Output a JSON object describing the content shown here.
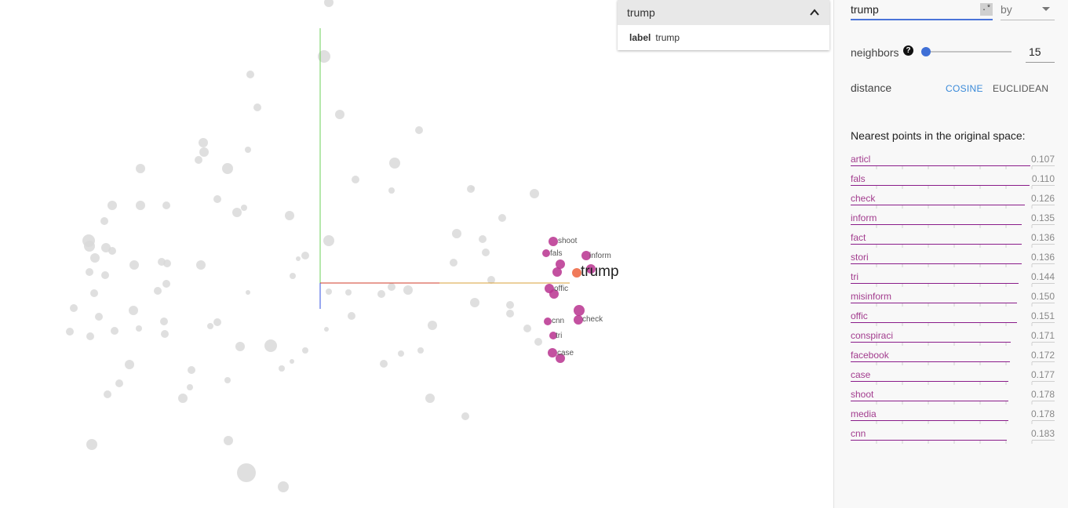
{
  "info_card": {
    "title": "trump",
    "field_key": "label",
    "field_value": "trump"
  },
  "search": {
    "value": "trump",
    "regex_toggle": ".*",
    "by_label": "by"
  },
  "neighbors": {
    "label": "neighbors",
    "value": "15",
    "fraction": 0.0
  },
  "distance": {
    "label": "distance",
    "options": [
      "COSINE",
      "EUCLIDEAN"
    ],
    "selected": "COSINE"
  },
  "nearest": {
    "title": "Nearest points in the original space:",
    "items": [
      {
        "word": "articl",
        "value": "0.107"
      },
      {
        "word": "fals",
        "value": "0.110"
      },
      {
        "word": "check",
        "value": "0.126"
      },
      {
        "word": "inform",
        "value": "0.135"
      },
      {
        "word": "fact",
        "value": "0.136"
      },
      {
        "word": "stori",
        "value": "0.136"
      },
      {
        "word": "tri",
        "value": "0.144"
      },
      {
        "word": "misinform",
        "value": "0.150"
      },
      {
        "word": "offic",
        "value": "0.151"
      },
      {
        "word": "conspiraci",
        "value": "0.171"
      },
      {
        "word": "facebook",
        "value": "0.172"
      },
      {
        "word": "case",
        "value": "0.177"
      },
      {
        "word": "shoot",
        "value": "0.178"
      },
      {
        "word": "media",
        "value": "0.178"
      },
      {
        "word": "cnn",
        "value": "0.183"
      }
    ]
  },
  "projection": {
    "selected_label": "trump",
    "neighbor_labels": [
      "shoot",
      "fals",
      "inform",
      "offic",
      "cnn",
      "check",
      "tri",
      "case"
    ],
    "colors": {
      "background_point": "#d9d9d9",
      "neighbor_point": "#b8338f",
      "selected_point": "#f07a5a",
      "axis_x": "#d23b2a",
      "axis_y": "#6bd15a",
      "axis_z": "#3050e0"
    }
  }
}
